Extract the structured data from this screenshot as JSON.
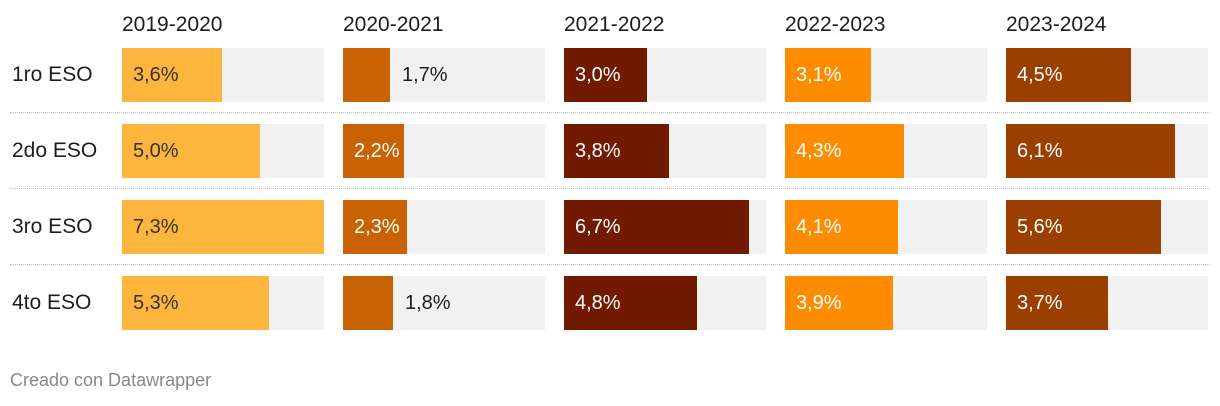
{
  "chart_data": {
    "type": "bar",
    "chart_kind": "small-multiple bar table",
    "categories": [
      "1ro ESO",
      "2do ESO",
      "3ro ESO",
      "4to ESO"
    ],
    "series": [
      {
        "name": "2019-2020",
        "color": "#fdb53d",
        "values": [
          3.6,
          5.0,
          7.3,
          5.3
        ],
        "labels": [
          "3,6%",
          "5,0%",
          "7,3%",
          "5,3%"
        ]
      },
      {
        "name": "2020-2021",
        "color": "#c96204",
        "values": [
          1.7,
          2.2,
          2.3,
          1.8
        ],
        "labels": [
          "1,7%",
          "2,2%",
          "2,3%",
          "1,8%"
        ]
      },
      {
        "name": "2021-2022",
        "color": "#711a00",
        "values": [
          3.0,
          3.8,
          6.7,
          4.8
        ],
        "labels": [
          "3,0%",
          "3,8%",
          "6,7%",
          "4,8%"
        ]
      },
      {
        "name": "2022-2023",
        "color": "#fe8c00",
        "values": [
          3.1,
          4.3,
          4.1,
          3.9
        ],
        "labels": [
          "3,1%",
          "4,3%",
          "4,1%",
          "3,9%"
        ]
      },
      {
        "name": "2023-2024",
        "color": "#9b3f00",
        "values": [
          4.5,
          6.1,
          5.6,
          3.7
        ],
        "labels": [
          "4,5%",
          "6,1%",
          "5,6%",
          "3,7%"
        ]
      }
    ],
    "xlim": [
      0,
      7.3
    ],
    "grid": false,
    "legend": "none"
  },
  "footer": "Creado con Datawrapper"
}
